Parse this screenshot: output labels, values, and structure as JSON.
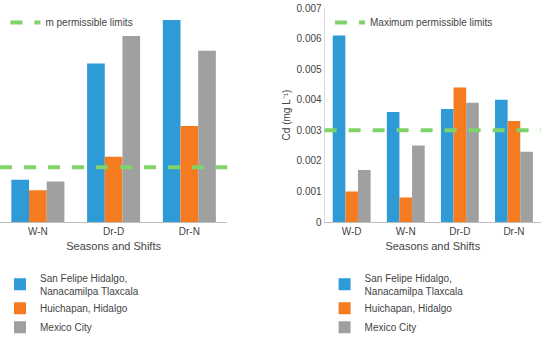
{
  "chart_data": [
    {
      "type": "bar",
      "categories": [
        "W-N",
        "Dr-D",
        "Dr-N"
      ],
      "x_label": "Seasons and Shifts",
      "series": [
        {
          "name": "San Felipe Hidalgo,\nNanacamilpa Tlaxcala",
          "color": "#2e9bd6",
          "values": [
            0.77,
            2.89,
            3.68
          ]
        },
        {
          "name": "Huichapan, Hidalgo",
          "color": "#f47b20",
          "values": [
            0.58,
            1.19,
            1.75
          ]
        },
        {
          "name": "Mexico City",
          "color": "#a0a0a0",
          "values": [
            0.74,
            3.39,
            3.12
          ]
        }
      ],
      "reference_line": {
        "name": "m permissible limits",
        "value": 1,
        "color": "#7fd36a",
        "line_style": "dashed"
      },
      "ylim": [
        0,
        3.9
      ],
      "yticks": [],
      "tick_labels": "x",
      "grid": false,
      "legend": "bottom"
    },
    {
      "type": "bar",
      "categories": [
        "W-D",
        "W-N",
        "Dr-D",
        "Dr-N"
      ],
      "x_label": "Seasons and Shifts",
      "y_label": "Cd (mg L⁻¹)",
      "series": [
        {
          "name": "San Felipe Hidalgo,\nNanacamilpa Tlaxcala",
          "color": "#2e9bd6",
          "values": [
            0.0061,
            0.0036,
            0.0037,
            0.004
          ]
        },
        {
          "name": "Huichapan, Hidalgo",
          "color": "#f47b20",
          "values": [
            0.001,
            0.0008,
            0.0044,
            0.0033
          ]
        },
        {
          "name": "Mexico City",
          "color": "#a0a0a0",
          "values": [
            0.0017,
            0.0025,
            0.0039,
            0.0023
          ]
        }
      ],
      "reference_line": {
        "name": "Maximum permissible limits",
        "value": 0.003,
        "color": "#7fd36a",
        "line_style": "dashed"
      },
      "ylim": [
        0,
        0.007
      ],
      "yticks": [
        0,
        0.001,
        0.002,
        0.003,
        0.004,
        0.005,
        0.006,
        0.007
      ],
      "grid": false,
      "legend": "bottom"
    }
  ]
}
